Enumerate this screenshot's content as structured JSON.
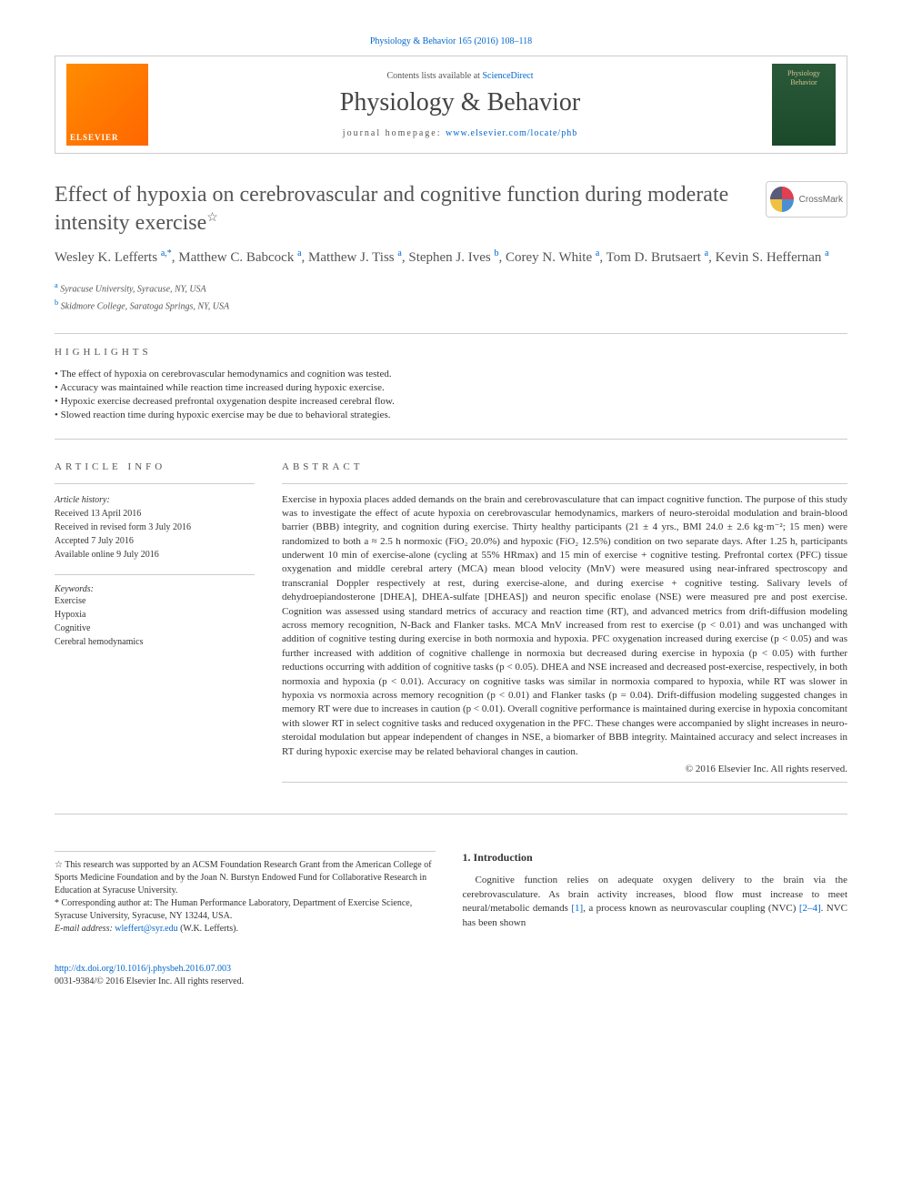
{
  "topLink": "Physiology & Behavior 165 (2016) 108–118",
  "header": {
    "publisher": "ELSEVIER",
    "contentsPrefix": "Contents lists available at ",
    "contentsLink": "ScienceDirect",
    "journalName": "Physiology & Behavior",
    "homepagePrefix": "journal homepage: ",
    "homepageUrl": "www.elsevier.com/locate/phb",
    "coverLine1": "Physiology",
    "coverLine2": "Behavior"
  },
  "title": "Effect of hypoxia on cerebrovascular and cognitive function during moderate intensity exercise",
  "titleStar": "☆",
  "crossmark": "CrossMark",
  "authors": [
    {
      "name": "Wesley K. Lefferts ",
      "sup": "a,*"
    },
    {
      "name": ", Matthew C. Babcock ",
      "sup": "a"
    },
    {
      "name": ", Matthew J. Tiss ",
      "sup": "a"
    },
    {
      "name": ", Stephen J. Ives ",
      "sup": "b"
    },
    {
      "name": ", Corey N. White ",
      "sup": "a"
    },
    {
      "name": ", Tom D. Brutsaert ",
      "sup": "a"
    },
    {
      "name": ", Kevin S. Heffernan ",
      "sup": "a"
    }
  ],
  "affiliations": [
    {
      "sup": "a",
      "text": " Syracuse University, Syracuse, NY, USA"
    },
    {
      "sup": "b",
      "text": " Skidmore College, Saratoga Springs, NY, USA"
    }
  ],
  "highlightsHeading": "HIGHLIGHTS",
  "highlights": [
    "• The effect of hypoxia on cerebrovascular hemodynamics and cognition was tested.",
    "• Accuracy was maintained while reaction time increased during hypoxic exercise.",
    "• Hypoxic exercise decreased prefrontal oxygenation despite increased cerebral flow.",
    "• Slowed reaction time during hypoxic exercise may be due to behavioral strategies."
  ],
  "articleInfoHeading": "ARTICLE INFO",
  "abstractHeading": "ABSTRACT",
  "articleHistory": {
    "label": "Article history:",
    "lines": [
      "Received 13 April 2016",
      "Received in revised form 3 July 2016",
      "Accepted 7 July 2016",
      "Available online 9 July 2016"
    ]
  },
  "keywordsLabel": "Keywords:",
  "keywords": [
    "Exercise",
    "Hypoxia",
    "Cognitive",
    "Cerebral hemodynamics"
  ],
  "abstract": "Exercise in hypoxia places added demands on the brain and cerebrovasculature that can impact cognitive function. The purpose of this study was to investigate the effect of acute hypoxia on cerebrovascular hemodynamics, markers of neuro-steroidal modulation and brain-blood barrier (BBB) integrity, and cognition during exercise. Thirty healthy participants (21 ± 4 yrs., BMI 24.0 ± 2.6 kg·m⁻²; 15 men) were randomized to both a ≈ 2.5 h normoxic (FiO₂ 20.0%) and hypoxic (FiO₂ 12.5%) condition on two separate days. After 1.25 h, participants underwent 10 min of exercise-alone (cycling at 55% HRmax) and 15 min of exercise + cognitive testing. Prefrontal cortex (PFC) tissue oxygenation and middle cerebral artery (MCA) mean blood velocity (MnV) were measured using near-infrared spectroscopy and transcranial Doppler respectively at rest, during exercise-alone, and during exercise + cognitive testing. Salivary levels of dehydroepiandosterone [DHEA], DHEA-sulfate [DHEAS]) and neuron specific enolase (NSE) were measured pre and post exercise. Cognition was assessed using standard metrics of accuracy and reaction time (RT), and advanced metrics from drift-diffusion modeling across memory recognition, N-Back and Flanker tasks. MCA MnV increased from rest to exercise (p < 0.01) and was unchanged with addition of cognitive testing during exercise in both normoxia and hypoxia. PFC oxygenation increased during exercise (p < 0.05) and was further increased with addition of cognitive challenge in normoxia but decreased during exercise in hypoxia (p < 0.05) with further reductions occurring with addition of cognitive tasks (p < 0.05). DHEA and NSE increased and decreased post-exercise, respectively, in both normoxia and hypoxia (p < 0.01). Accuracy on cognitive tasks was similar in normoxia compared to hypoxia, while RT was slower in hypoxia vs normoxia across memory recognition (p < 0.01) and Flanker tasks (p = 0.04). Drift-diffusion modeling suggested changes in memory RT were due to increases in caution (p < 0.01). Overall cognitive performance is maintained during exercise in hypoxia concomitant with slower RT in select cognitive tasks and reduced oxygenation in the PFC. These changes were accompanied by slight increases in neuro-steroidal modulation but appear independent of changes in NSE, a biomarker of BBB integrity. Maintained accuracy and select increases in RT during hypoxic exercise may be related behavioral changes in caution.",
  "copyright": "© 2016 Elsevier Inc. All rights reserved.",
  "footnotes": {
    "funding": "☆ This research was supported by an ACSM Foundation Research Grant from the American College of Sports Medicine Foundation and by the Joan N. Burstyn Endowed Fund for Collaborative Research in Education at Syracuse University.",
    "corresponding": "* Corresponding author at: The Human Performance Laboratory, Department of Exercise Science, Syracuse University, Syracuse, NY 13244, USA.",
    "emailLabel": "E-mail address: ",
    "email": "wleffert@syr.edu",
    "emailSuffix": " (W.K. Lefferts)."
  },
  "intro": {
    "heading": "1. Introduction",
    "text": "Cognitive function relies on adequate oxygen delivery to the brain via the cerebrovasculature. As brain activity increases, blood flow must increase to meet neural/metabolic demands ",
    "ref1": "[1]",
    "text2": ", a process known as neurovascular coupling (NVC) ",
    "ref2": "[2–4]",
    "text3": ". NVC has been shown"
  },
  "doi": {
    "url": "http://dx.doi.org/10.1016/j.physbeh.2016.07.003",
    "issn": "0031-9384/© 2016 Elsevier Inc. All rights reserved."
  },
  "colors": {
    "link": "#0066cc",
    "text": "#333333",
    "heading": "#555555",
    "rule": "#cccccc",
    "elsevierOrange": "#ff8c00",
    "coverGreen": "#2a5a3a"
  }
}
